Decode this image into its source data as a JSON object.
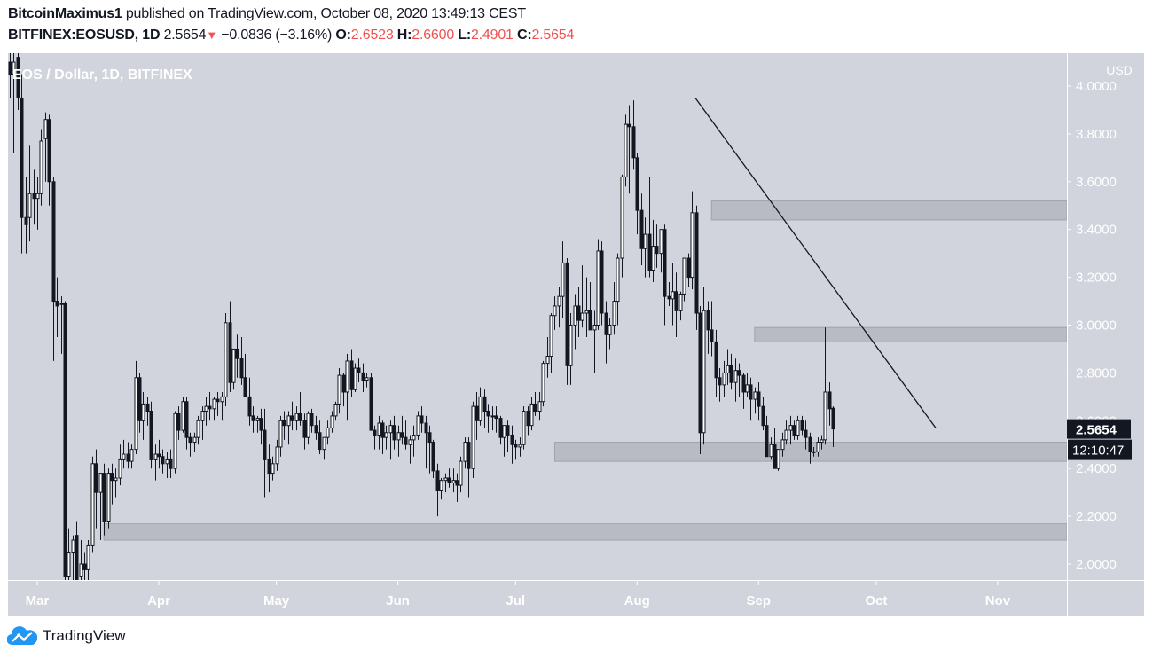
{
  "header": {
    "author": "BitcoinMaximus1",
    "published_text": " published on TradingView.com, October 08, 2020 13:49:13 CEST",
    "symbol": "BITFINEX:EOSUSD, 1D",
    "last_price": "2.5654",
    "direction_icon": "▼",
    "change": "−0.0836 (−3.16%)",
    "open_label": "O:",
    "open": "2.6523",
    "high_label": "H:",
    "high": "2.6600",
    "low_label": "L:",
    "low": "2.4901",
    "close_label": "C:",
    "close": "2.5654"
  },
  "chart_title": "EOS / Dollar, 1D, BITFINEX",
  "footer": {
    "brand": "TradingView"
  },
  "colors": {
    "chart_bg": "#d1d4dc",
    "candle_dark": "#131722",
    "candle_up_fill": "#ffffff",
    "zone_fill": "#b8bbc4",
    "zone_border": "#9fa2ab",
    "axis_text": "#ffffff",
    "price_label_bg": "#131722",
    "accent_red": "#ef5350",
    "logo_blue": "#2196f3"
  },
  "chart_data": {
    "type": "candlestick",
    "title": "EOS / Dollar, 1D, BITFINEX",
    "xlabel": "",
    "ylabel": "USD",
    "ylim": [
      1.88,
      4.13
    ],
    "grid": false,
    "x_ticks": [
      "Mar",
      "Apr",
      "May",
      "Jun",
      "Jul",
      "Aug",
      "Sep",
      "Oct",
      "Nov"
    ],
    "y_ticks": [
      "4.0000",
      "3.8000",
      "3.6000",
      "3.4000",
      "3.2000",
      "3.0000",
      "2.8000",
      "2.6000",
      "2.4000",
      "2.2000",
      "2.0000"
    ],
    "current_price_label": "2.5654",
    "countdown_label": "12:10:47",
    "start_date": "2020-02-23",
    "ohlc": [
      [
        4.1,
        4.2,
        3.95,
        4.05
      ],
      [
        4.05,
        4.15,
        3.72,
        4.1
      ],
      [
        4.12,
        4.2,
        3.9,
        3.95
      ],
      [
        3.95,
        4.05,
        3.3,
        3.45
      ],
      [
        3.45,
        3.62,
        3.3,
        3.42
      ],
      [
        3.45,
        3.75,
        3.35,
        3.55
      ],
      [
        3.55,
        3.65,
        3.42,
        3.53
      ],
      [
        3.53,
        3.62,
        3.4,
        3.55
      ],
      [
        3.55,
        3.82,
        3.5,
        3.77
      ],
      [
        3.78,
        3.89,
        3.6,
        3.86
      ],
      [
        3.86,
        3.88,
        3.5,
        3.6
      ],
      [
        3.6,
        3.62,
        2.85,
        3.1
      ],
      [
        3.1,
        3.2,
        2.95,
        3.08
      ],
      [
        3.09,
        3.12,
        2.88,
        3.09
      ],
      [
        3.09,
        3.1,
        1.9,
        1.95
      ],
      [
        1.95,
        2.15,
        1.88,
        2.05
      ],
      [
        2.05,
        2.12,
        1.9,
        2.1
      ],
      [
        2.12,
        2.18,
        1.88,
        1.92
      ],
      [
        1.95,
        2.1,
        1.9,
        2.0
      ],
      [
        2.0,
        2.05,
        1.85,
        1.98
      ],
      [
        1.98,
        2.1,
        1.92,
        2.08
      ],
      [
        2.08,
        2.45,
        2.05,
        2.42
      ],
      [
        2.42,
        2.48,
        2.15,
        2.3
      ],
      [
        2.3,
        2.38,
        2.1,
        2.38
      ],
      [
        2.38,
        2.42,
        2.12,
        2.18
      ],
      [
        2.18,
        2.4,
        2.15,
        2.38
      ],
      [
        2.38,
        2.42,
        2.25,
        2.35
      ],
      [
        2.35,
        2.4,
        2.28,
        2.36
      ],
      [
        2.36,
        2.5,
        2.33,
        2.44
      ],
      [
        2.44,
        2.52,
        2.4,
        2.46
      ],
      [
        2.46,
        2.51,
        2.4,
        2.43
      ],
      [
        2.43,
        2.5,
        2.4,
        2.48
      ],
      [
        2.48,
        2.85,
        2.46,
        2.78
      ],
      [
        2.78,
        2.8,
        2.55,
        2.6
      ],
      [
        2.6,
        2.72,
        2.52,
        2.67
      ],
      [
        2.67,
        2.7,
        2.58,
        2.64
      ],
      [
        2.64,
        2.68,
        2.4,
        2.44
      ],
      [
        2.44,
        2.5,
        2.35,
        2.46
      ],
      [
        2.46,
        2.52,
        2.4,
        2.45
      ],
      [
        2.45,
        2.48,
        2.38,
        2.42
      ],
      [
        2.42,
        2.47,
        2.36,
        2.44
      ],
      [
        2.44,
        2.48,
        2.36,
        2.4
      ],
      [
        2.4,
        2.64,
        2.38,
        2.63
      ],
      [
        2.63,
        2.66,
        2.52,
        2.56
      ],
      [
        2.56,
        2.7,
        2.55,
        2.68
      ],
      [
        2.68,
        2.7,
        2.48,
        2.53
      ],
      [
        2.53,
        2.55,
        2.45,
        2.51
      ],
      [
        2.51,
        2.55,
        2.47,
        2.53
      ],
      [
        2.53,
        2.62,
        2.5,
        2.6
      ],
      [
        2.6,
        2.66,
        2.52,
        2.64
      ],
      [
        2.64,
        2.7,
        2.58,
        2.66
      ],
      [
        2.66,
        2.72,
        2.6,
        2.65
      ],
      [
        2.65,
        2.7,
        2.6,
        2.69
      ],
      [
        2.69,
        2.72,
        2.62,
        2.68
      ],
      [
        2.68,
        2.72,
        2.6,
        2.7
      ],
      [
        2.7,
        3.05,
        2.66,
        3.01
      ],
      [
        3.01,
        3.1,
        2.72,
        2.76
      ],
      [
        2.76,
        2.9,
        2.73,
        2.9
      ],
      [
        2.9,
        2.96,
        2.78,
        2.86
      ],
      [
        2.86,
        2.95,
        2.75,
        2.78
      ],
      [
        2.78,
        2.88,
        2.72,
        2.7
      ],
      [
        2.7,
        2.78,
        2.58,
        2.62
      ],
      [
        2.62,
        2.66,
        2.55,
        2.6
      ],
      [
        2.6,
        2.62,
        2.55,
        2.61
      ],
      [
        2.61,
        2.65,
        2.5,
        2.56
      ],
      [
        2.56,
        2.65,
        2.28,
        2.44
      ],
      [
        2.44,
        2.5,
        2.3,
        2.38
      ],
      [
        2.38,
        2.45,
        2.35,
        2.42
      ],
      [
        2.42,
        2.52,
        2.39,
        2.49
      ],
      [
        2.49,
        2.62,
        2.45,
        2.6
      ],
      [
        2.6,
        2.64,
        2.52,
        2.58
      ],
      [
        2.58,
        2.64,
        2.5,
        2.62
      ],
      [
        2.62,
        2.68,
        2.56,
        2.6
      ],
      [
        2.6,
        2.66,
        2.56,
        2.63
      ],
      [
        2.63,
        2.72,
        2.58,
        2.6
      ],
      [
        2.6,
        2.63,
        2.48,
        2.53
      ],
      [
        2.53,
        2.64,
        2.5,
        2.63
      ],
      [
        2.63,
        2.65,
        2.55,
        2.58
      ],
      [
        2.58,
        2.62,
        2.52,
        2.55
      ],
      [
        2.55,
        2.6,
        2.46,
        2.48
      ],
      [
        2.48,
        2.52,
        2.44,
        2.53
      ],
      [
        2.53,
        2.6,
        2.5,
        2.57
      ],
      [
        2.57,
        2.64,
        2.55,
        2.62
      ],
      [
        2.62,
        2.68,
        2.6,
        2.67
      ],
      [
        2.67,
        2.82,
        2.63,
        2.79
      ],
      [
        2.79,
        2.8,
        2.66,
        2.72
      ],
      [
        2.72,
        2.88,
        2.6,
        2.85
      ],
      [
        2.85,
        2.9,
        2.7,
        2.73
      ],
      [
        2.73,
        2.84,
        2.72,
        2.82
      ],
      [
        2.82,
        2.86,
        2.76,
        2.8
      ],
      [
        2.8,
        2.84,
        2.72,
        2.77
      ],
      [
        2.77,
        2.8,
        2.74,
        2.78
      ],
      [
        2.78,
        2.8,
        2.6,
        2.56
      ],
      [
        2.56,
        2.58,
        2.48,
        2.54
      ],
      [
        2.54,
        2.62,
        2.48,
        2.59
      ],
      [
        2.59,
        2.6,
        2.46,
        2.53
      ],
      [
        2.53,
        2.58,
        2.48,
        2.55
      ],
      [
        2.55,
        2.6,
        2.44,
        2.58
      ],
      [
        2.58,
        2.62,
        2.48,
        2.52
      ],
      [
        2.52,
        2.58,
        2.45,
        2.55
      ],
      [
        2.55,
        2.62,
        2.5,
        2.53
      ],
      [
        2.53,
        2.6,
        2.48,
        2.5
      ],
      [
        2.5,
        2.54,
        2.42,
        2.52
      ],
      [
        2.52,
        2.58,
        2.45,
        2.54
      ],
      [
        2.54,
        2.64,
        2.52,
        2.62
      ],
      [
        2.62,
        2.66,
        2.55,
        2.59
      ],
      [
        2.59,
        2.62,
        2.4,
        2.55
      ],
      [
        2.55,
        2.58,
        2.38,
        2.51
      ],
      [
        2.51,
        2.52,
        2.36,
        2.39
      ],
      [
        2.39,
        2.42,
        2.2,
        2.31
      ],
      [
        2.31,
        2.36,
        2.27,
        2.35
      ],
      [
        2.35,
        2.38,
        2.3,
        2.36
      ],
      [
        2.36,
        2.4,
        2.32,
        2.34
      ],
      [
        2.34,
        2.4,
        2.3,
        2.35
      ],
      [
        2.35,
        2.38,
        2.26,
        2.33
      ],
      [
        2.33,
        2.45,
        2.3,
        2.43
      ],
      [
        2.43,
        2.53,
        2.4,
        2.51
      ],
      [
        2.51,
        2.53,
        2.28,
        2.4
      ],
      [
        2.4,
        2.68,
        2.36,
        2.66
      ],
      [
        2.66,
        2.72,
        2.52,
        2.6
      ],
      [
        2.6,
        2.74,
        2.58,
        2.7
      ],
      [
        2.7,
        2.73,
        2.57,
        2.64
      ],
      [
        2.64,
        2.67,
        2.55,
        2.62
      ],
      [
        2.62,
        2.66,
        2.56,
        2.62
      ],
      [
        2.62,
        2.66,
        2.55,
        2.61
      ],
      [
        2.61,
        2.62,
        2.5,
        2.53
      ],
      [
        2.53,
        2.58,
        2.45,
        2.58
      ],
      [
        2.58,
        2.6,
        2.47,
        2.54
      ],
      [
        2.54,
        2.58,
        2.42,
        2.5
      ],
      [
        2.5,
        2.52,
        2.44,
        2.49
      ],
      [
        2.49,
        2.53,
        2.45,
        2.5
      ],
      [
        2.5,
        2.66,
        2.48,
        2.64
      ],
      [
        2.64,
        2.66,
        2.54,
        2.58
      ],
      [
        2.58,
        2.7,
        2.56,
        2.67
      ],
      [
        2.67,
        2.72,
        2.62,
        2.64
      ],
      [
        2.64,
        2.72,
        2.6,
        2.68
      ],
      [
        2.68,
        2.85,
        2.66,
        2.84
      ],
      [
        2.84,
        2.95,
        2.78,
        2.87
      ],
      [
        2.87,
        3.05,
        2.8,
        3.04
      ],
      [
        3.04,
        3.12,
        2.98,
        3.08
      ],
      [
        3.08,
        3.16,
        2.99,
        3.12
      ],
      [
        3.12,
        3.35,
        3.03,
        3.26
      ],
      [
        3.26,
        3.28,
        2.75,
        2.83
      ],
      [
        2.83,
        3.05,
        2.75,
        3.0
      ],
      [
        3.0,
        3.13,
        2.9,
        3.08
      ],
      [
        3.08,
        3.16,
        2.95,
        3.02
      ],
      [
        3.02,
        3.25,
        2.99,
        3.05
      ],
      [
        3.05,
        3.2,
        2.95,
        3.06
      ],
      [
        3.06,
        3.18,
        2.98,
        2.98
      ],
      [
        2.98,
        3.06,
        2.8,
        3.0
      ],
      [
        3.0,
        3.36,
        2.98,
        3.31
      ],
      [
        3.31,
        3.35,
        3.0,
        3.05
      ],
      [
        3.05,
        3.1,
        2.84,
        2.96
      ],
      [
        2.96,
        3.03,
        2.9,
        3.0
      ],
      [
        3.0,
        3.18,
        2.96,
        3.1
      ],
      [
        3.1,
        3.3,
        3.0,
        3.28
      ],
      [
        3.28,
        3.63,
        3.2,
        3.62
      ],
      [
        3.62,
        3.88,
        3.58,
        3.84
      ],
      [
        3.84,
        3.92,
        3.55,
        3.83
      ],
      [
        3.83,
        3.94,
        3.65,
        3.7
      ],
      [
        3.7,
        3.72,
        3.38,
        3.48
      ],
      [
        3.48,
        3.55,
        3.25,
        3.32
      ],
      [
        3.32,
        3.45,
        3.2,
        3.38
      ],
      [
        3.38,
        3.62,
        3.2,
        3.23
      ],
      [
        3.23,
        3.44,
        3.18,
        3.33
      ],
      [
        3.33,
        3.42,
        3.24,
        3.3
      ],
      [
        3.3,
        3.4,
        3.22,
        3.4
      ],
      [
        3.4,
        3.42,
        3.0,
        3.12
      ],
      [
        3.12,
        3.18,
        3.08,
        3.11
      ],
      [
        3.11,
        3.26,
        3.0,
        3.14
      ],
      [
        3.14,
        3.22,
        2.95,
        3.06
      ],
      [
        3.06,
        3.14,
        3.02,
        3.13
      ],
      [
        3.13,
        3.28,
        3.1,
        3.28
      ],
      [
        3.28,
        3.3,
        3.16,
        3.2
      ],
      [
        3.2,
        3.56,
        3.15,
        3.47
      ],
      [
        3.47,
        3.5,
        2.98,
        3.05
      ],
      [
        3.05,
        3.08,
        2.46,
        2.55
      ],
      [
        2.55,
        3.16,
        2.5,
        3.06
      ],
      [
        3.06,
        3.1,
        2.88,
        2.98
      ],
      [
        2.98,
        3.1,
        2.87,
        2.93
      ],
      [
        2.93,
        2.98,
        2.7,
        2.78
      ],
      [
        2.78,
        2.82,
        2.68,
        2.75
      ],
      [
        2.75,
        2.85,
        2.7,
        2.8
      ],
      [
        2.8,
        2.9,
        2.75,
        2.83
      ],
      [
        2.83,
        2.88,
        2.73,
        2.76
      ],
      [
        2.76,
        2.86,
        2.68,
        2.81
      ],
      [
        2.81,
        2.84,
        2.7,
        2.79
      ],
      [
        2.79,
        2.8,
        2.65,
        2.72
      ],
      [
        2.72,
        2.8,
        2.7,
        2.75
      ],
      [
        2.75,
        2.78,
        2.6,
        2.69
      ],
      [
        2.69,
        2.74,
        2.63,
        2.72
      ],
      [
        2.72,
        2.76,
        2.6,
        2.66
      ],
      [
        2.66,
        2.7,
        2.56,
        2.58
      ],
      [
        2.58,
        2.62,
        2.47,
        2.45
      ],
      [
        2.45,
        2.53,
        2.44,
        2.5
      ],
      [
        2.5,
        2.57,
        2.4,
        2.4
      ],
      [
        2.4,
        2.48,
        2.39,
        2.48
      ],
      [
        2.48,
        2.55,
        2.45,
        2.52
      ],
      [
        2.52,
        2.6,
        2.5,
        2.56
      ],
      [
        2.56,
        2.62,
        2.5,
        2.58
      ],
      [
        2.58,
        2.6,
        2.52,
        2.54
      ],
      [
        2.54,
        2.62,
        2.52,
        2.6
      ],
      [
        2.6,
        2.62,
        2.54,
        2.56
      ],
      [
        2.56,
        2.6,
        2.48,
        2.53
      ],
      [
        2.53,
        2.55,
        2.42,
        2.47
      ],
      [
        2.47,
        2.49,
        2.45,
        2.47
      ],
      [
        2.47,
        2.53,
        2.45,
        2.51
      ],
      [
        2.51,
        2.54,
        2.48,
        2.52
      ],
      [
        2.52,
        2.99,
        2.5,
        2.72
      ],
      [
        2.72,
        2.76,
        2.58,
        2.65
      ],
      [
        2.6523,
        2.66,
        2.4901,
        2.5654
      ]
    ],
    "zones": [
      {
        "x_start_date": "2020-08-20",
        "low": 3.44,
        "high": 3.52
      },
      {
        "x_start_date": "2020-08-31",
        "low": 2.93,
        "high": 2.99
      },
      {
        "x_start_date": "2020-07-11",
        "low": 2.43,
        "high": 2.51
      },
      {
        "x_start_date": "2020-03-18",
        "low": 2.1,
        "high": 2.17
      }
    ],
    "trendline": {
      "from": {
        "date": "2020-08-16",
        "price": 3.95
      },
      "to": {
        "date": "2020-10-15",
        "price": 2.57
      }
    }
  }
}
